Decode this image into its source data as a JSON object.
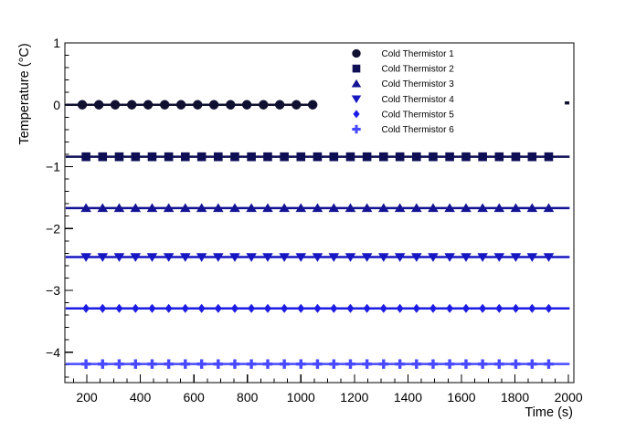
{
  "chart_data": {
    "type": "line",
    "title": "",
    "background": "#ffffff",
    "x_axis": {
      "title": "Time (s)",
      "min": 118,
      "max": 2020,
      "major_ticks": [
        200,
        400,
        600,
        800,
        1000,
        1200,
        1400,
        1600,
        1800,
        2000
      ],
      "tick_labels": [
        "200",
        "400",
        "600",
        "800",
        "1000",
        "1200",
        "1400",
        "1600",
        "1800",
        "2000"
      ],
      "minor_tick_step": 50,
      "grid": false
    },
    "y_axis": {
      "title": "Temperature (°C)",
      "min": -4.49,
      "max": 1,
      "major_ticks": [
        1,
        0,
        -1,
        -2,
        -3,
        -4
      ],
      "tick_labels": [
        "1",
        "0",
        "−1",
        "−2",
        "−3",
        "−4"
      ],
      "minor_tick_step": 0.2,
      "grid": false
    },
    "legend": {
      "position": "top-right",
      "entries": [
        "Cold Thermistor 1",
        "Cold Thermistor 2",
        "Cold Thermistor 3",
        "Cold Thermistor 4",
        "Cold Thermistor 5",
        "Cold Thermistor 6"
      ]
    },
    "series": [
      {
        "name": "Cold Thermistor 1",
        "color": "#101030",
        "marker": "circle",
        "y": 0.0,
        "line_t": [
          121,
          1060
        ],
        "marker_t": [
          183,
          245,
          306,
          368,
          429,
          491,
          552,
          614,
          675,
          737,
          798,
          860,
          921,
          983,
          1044
        ],
        "tail_segment": {
          "t": [
            1986,
            2003
          ],
          "y": 0.03
        }
      },
      {
        "name": "Cold Thermistor 2",
        "color": "#0e0e55",
        "marker": "square",
        "y": -0.84,
        "line_t": [
          121,
          2004
        ],
        "marker_t": [
          197,
          259,
          321,
          382,
          444,
          506,
          568,
          629,
          691,
          753,
          815,
          876,
          938,
          1000,
          1062,
          1123,
          1185,
          1247,
          1309,
          1370,
          1432,
          1494,
          1556,
          1617,
          1679,
          1741,
          1803,
          1864,
          1926
        ]
      },
      {
        "name": "Cold Thermistor 3",
        "color": "#131394",
        "marker": "triangle-up",
        "y": -1.67,
        "line_t": [
          121,
          2004
        ],
        "marker_t": [
          197,
          259,
          321,
          382,
          444,
          506,
          568,
          629,
          691,
          753,
          815,
          876,
          938,
          1000,
          1062,
          1123,
          1185,
          1247,
          1309,
          1370,
          1432,
          1494,
          1556,
          1617,
          1679,
          1741,
          1803,
          1864,
          1926
        ]
      },
      {
        "name": "Cold Thermistor 4",
        "color": "#1616c2",
        "marker": "triangle-down",
        "y": -2.46,
        "line_t": [
          121,
          2004
        ],
        "marker_t": [
          197,
          259,
          321,
          382,
          444,
          506,
          568,
          629,
          691,
          753,
          815,
          876,
          938,
          1000,
          1062,
          1123,
          1185,
          1247,
          1309,
          1370,
          1432,
          1494,
          1556,
          1617,
          1679,
          1741,
          1803,
          1864,
          1926
        ]
      },
      {
        "name": "Cold Thermistor 5",
        "color": "#1c1ce4",
        "marker": "diamond",
        "y": -3.29,
        "line_t": [
          121,
          2004
        ],
        "marker_t": [
          197,
          259,
          321,
          382,
          444,
          506,
          568,
          629,
          691,
          753,
          815,
          876,
          938,
          1000,
          1062,
          1123,
          1185,
          1247,
          1309,
          1370,
          1432,
          1494,
          1556,
          1617,
          1679,
          1741,
          1803,
          1864,
          1926
        ]
      },
      {
        "name": "Cold Thermistor 6",
        "color": "#4848ff",
        "marker": "cross",
        "y": -4.19,
        "line_t": [
          121,
          2004
        ],
        "marker_t": [
          197,
          259,
          321,
          382,
          444,
          506,
          568,
          629,
          691,
          753,
          815,
          876,
          938,
          1000,
          1062,
          1123,
          1185,
          1247,
          1309,
          1370,
          1432,
          1494,
          1556,
          1617,
          1679,
          1741,
          1803,
          1864,
          1926
        ]
      }
    ]
  }
}
